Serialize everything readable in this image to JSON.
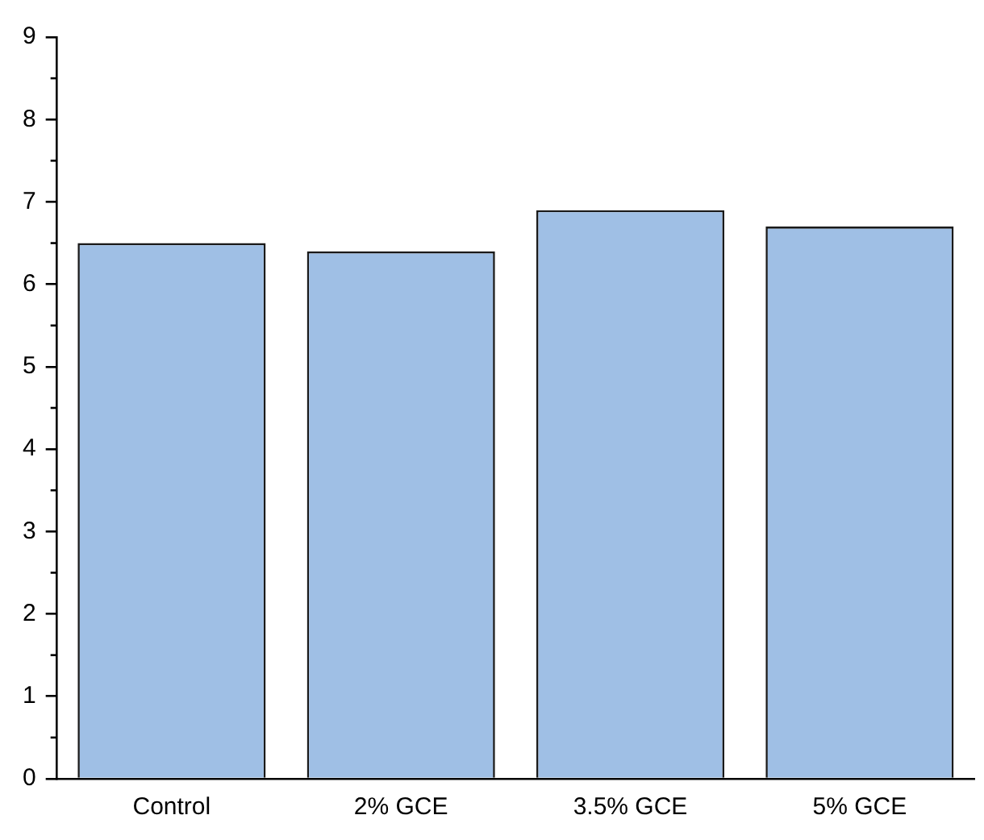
{
  "chart_data": {
    "type": "bar",
    "categories": [
      "Control",
      "2% GCE",
      "3.5% GCE",
      "5% GCE"
    ],
    "values": [
      6.5,
      6.4,
      6.9,
      6.7
    ],
    "color": "#9fbfe5",
    "ylim": [
      0,
      9
    ],
    "yticks": [
      0,
      1,
      2,
      3,
      4,
      5,
      6,
      7,
      8,
      9
    ],
    "grid": false,
    "legend": false
  }
}
